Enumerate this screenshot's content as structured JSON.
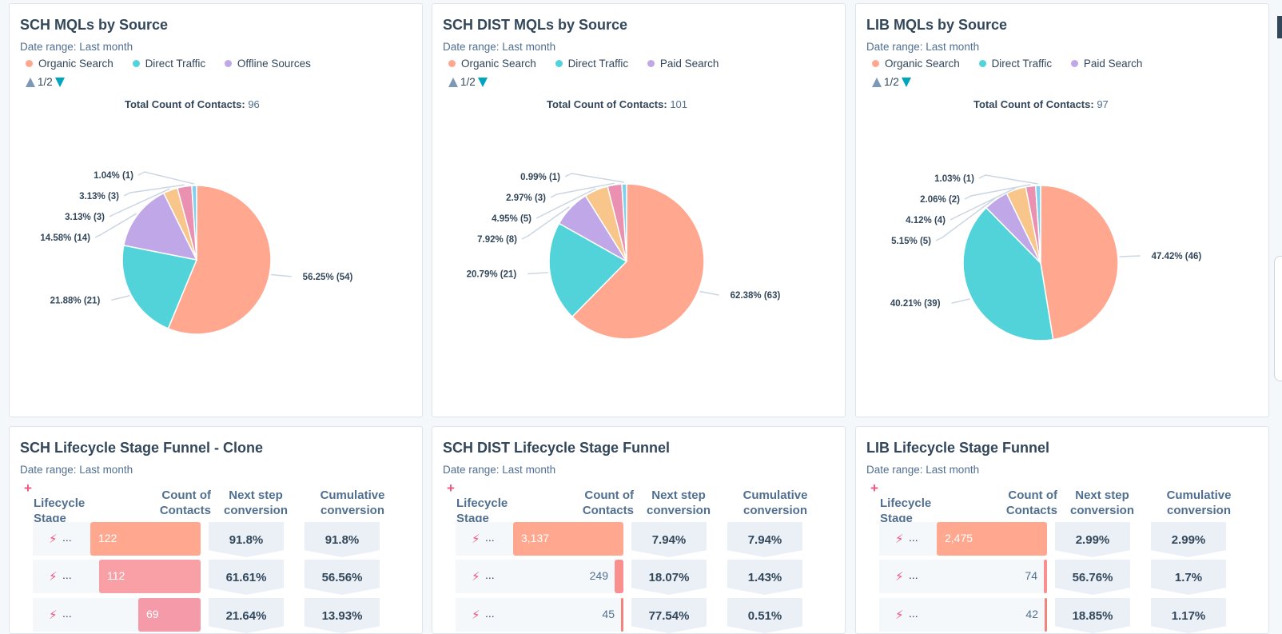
{
  "colors": {
    "organic": "#ffa88f",
    "direct": "#51d3d9",
    "offline": "#bfa7e8",
    "paid": "#bfa7e8",
    "orange": "#f8c58b",
    "pink": "#ea90b1",
    "blue": "#7fd1f0",
    "funnel_bar": "#ff9f88"
  },
  "cards": [
    {
      "title": "SCH MQLs by Source",
      "date_range": "Date range: Last month",
      "legend": [
        "Organic Search",
        "Direct Traffic",
        "Offline Sources"
      ],
      "pager": "1/2",
      "total_label": "Total Count of Contacts:",
      "total_value": "96"
    },
    {
      "title": "SCH DIST MQLs by Source",
      "date_range": "Date range: Last month",
      "legend": [
        "Organic Search",
        "Direct Traffic",
        "Paid Search"
      ],
      "pager": "1/2",
      "total_label": "Total Count of Contacts:",
      "total_value": "101"
    },
    {
      "title": "LIB MQLs by Source",
      "date_range": "Date range: Last month",
      "legend": [
        "Organic Search",
        "Direct Traffic",
        "Paid Search"
      ],
      "pager": "1/2",
      "total_label": "Total Count of Contacts:",
      "total_value": "97"
    },
    {
      "title": "SCH Lifecycle Stage Funnel - Clone",
      "date_range": "Date range: Last month",
      "headers": [
        "Lifecycle Stage",
        "Count of Contacts",
        "Next step conversion",
        "Cumulative conversion"
      ],
      "rows": [
        {
          "label": "...",
          "count": "122",
          "next": "91.8%",
          "cum": "91.8%"
        },
        {
          "label": "...",
          "count": "112",
          "next": "61.61%",
          "cum": "56.56%"
        },
        {
          "label": "...",
          "count": "69",
          "next": "21.64%",
          "cum": "13.93%"
        }
      ]
    },
    {
      "title": "SCH DIST Lifecycle Stage Funnel",
      "date_range": "Date range: Last month",
      "headers": [
        "Lifecycle Stage",
        "Count of Contacts",
        "Next step conversion",
        "Cumulative conversion"
      ],
      "rows": [
        {
          "label": "...",
          "count": "3,137",
          "next": "7.94%",
          "cum": "7.94%"
        },
        {
          "label": "...",
          "count": "249",
          "next": "18.07%",
          "cum": "1.43%"
        },
        {
          "label": "...",
          "count": "45",
          "next": "77.54%",
          "cum": "0.51%"
        }
      ]
    },
    {
      "title": "LIB Lifecycle Stage Funnel",
      "date_range": "Date range: Last month",
      "headers": [
        "Lifecycle Stage",
        "Count of Contacts",
        "Next step conversion",
        "Cumulative conversion"
      ],
      "rows": [
        {
          "label": "...",
          "count": "2,475",
          "next": "2.99%",
          "cum": "2.99%"
        },
        {
          "label": "...",
          "count": "74",
          "next": "56.76%",
          "cum": "1.7%"
        },
        {
          "label": "...",
          "count": "42",
          "next": "18.85%",
          "cum": "1.17%"
        }
      ]
    }
  ],
  "chart_data": [
    {
      "type": "pie",
      "title": "SCH MQLs by Source",
      "slices": [
        {
          "name": "Organic Search",
          "value": 54,
          "label": "56.25% (54)",
          "color": "#ffa88f"
        },
        {
          "name": "Direct Traffic",
          "value": 21,
          "label": "21.88% (21)",
          "color": "#51d3d9"
        },
        {
          "name": "Offline Sources",
          "value": 14,
          "label": "14.58% (14)",
          "color": "#bfa7e8"
        },
        {
          "value": 3,
          "label": "3.13% (3)",
          "color": "#f8c58b"
        },
        {
          "value": 3,
          "label": "3.13% (3)",
          "color": "#ea90b1"
        },
        {
          "value": 1,
          "label": "1.04% (1)",
          "color": "#7fd1f0"
        }
      ]
    },
    {
      "type": "pie",
      "title": "SCH DIST MQLs by Source",
      "slices": [
        {
          "name": "Organic Search",
          "value": 63,
          "label": "62.38% (63)",
          "color": "#ffa88f"
        },
        {
          "name": "Direct Traffic",
          "value": 21,
          "label": "20.79% (21)",
          "color": "#51d3d9"
        },
        {
          "name": "Paid Search",
          "value": 8,
          "label": "7.92% (8)",
          "color": "#bfa7e8"
        },
        {
          "value": 5,
          "label": "4.95% (5)",
          "color": "#f8c58b"
        },
        {
          "value": 3,
          "label": "2.97% (3)",
          "color": "#ea90b1"
        },
        {
          "value": 1,
          "label": "0.99% (1)",
          "color": "#7fd1f0"
        }
      ]
    },
    {
      "type": "pie",
      "title": "LIB MQLs by Source",
      "slices": [
        {
          "name": "Organic Search",
          "value": 46,
          "label": "47.42% (46)",
          "color": "#ffa88f"
        },
        {
          "name": "Direct Traffic",
          "value": 39,
          "label": "40.21% (39)",
          "color": "#51d3d9"
        },
        {
          "name": "Paid Search",
          "value": 5,
          "label": "5.15% (5)",
          "color": "#bfa7e8"
        },
        {
          "value": 4,
          "label": "4.12% (4)",
          "color": "#f8c58b"
        },
        {
          "value": 2,
          "label": "2.06% (2)",
          "color": "#ea90b1"
        },
        {
          "value": 1,
          "label": "1.03% (1)",
          "color": "#7fd1f0"
        }
      ]
    },
    {
      "type": "bar",
      "title": "SCH Lifecycle Stage Funnel - Clone",
      "ylabel": "Count of Contacts",
      "values": [
        122,
        112,
        69
      ]
    },
    {
      "type": "bar",
      "title": "SCH DIST Lifecycle Stage Funnel",
      "ylabel": "Count of Contacts",
      "values": [
        3137,
        249,
        45
      ]
    },
    {
      "type": "bar",
      "title": "LIB Lifecycle Stage Funnel",
      "ylabel": "Count of Contacts",
      "values": [
        2475,
        74,
        42
      ]
    }
  ]
}
